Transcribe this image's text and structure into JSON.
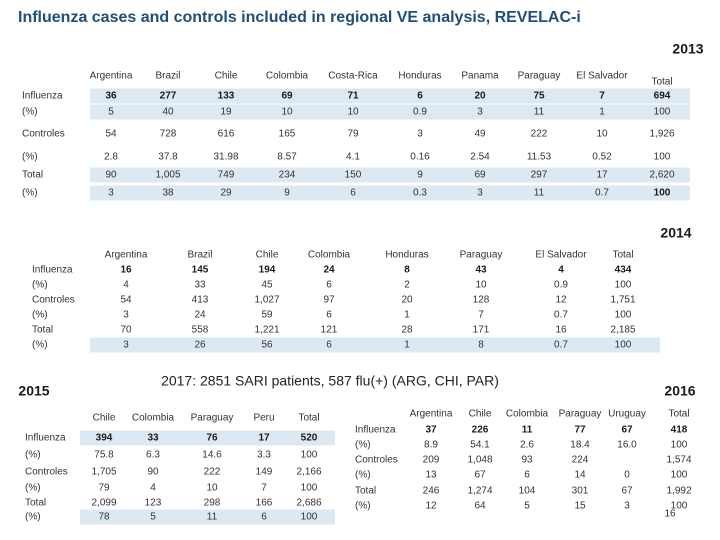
{
  "title": "Influenza cases and controls included in regional VE analysis, REVELAC-i",
  "subtitle": "2017: 2851 SARI patients, 587 flu(+) (ARG, CHI, PAR)",
  "page_number": "16",
  "tables": [
    {
      "year": "2013",
      "columns": [
        "Argentina",
        "Brazil",
        "Chile",
        "Colombia",
        "Costa-Rica",
        "Honduras",
        "Panama",
        "Paraguay",
        "El Salvador",
        "Total"
      ],
      "rows": [
        {
          "label": "Influenza",
          "cells": [
            "36",
            "277",
            "133",
            "69",
            "71",
            "6",
            "20",
            "75",
            "7",
            "694"
          ]
        },
        {
          "label": "(%)",
          "cells": [
            "5",
            "40",
            "19",
            "10",
            "10",
            "0.9",
            "3",
            "11",
            "1",
            "100"
          ]
        },
        {
          "label": "Controles",
          "cells": [
            "54",
            "728",
            "616",
            "165",
            "79",
            "3",
            "49",
            "222",
            "10",
            "1,926"
          ]
        },
        {
          "label": "(%)",
          "cells": [
            "2.8",
            "37.8",
            "31.98",
            "8.57",
            "4.1",
            "0.16",
            "2.54",
            "11.53",
            "0.52",
            "100"
          ]
        },
        {
          "label": "Total",
          "cells": [
            "90",
            "1,005",
            "749",
            "234",
            "150",
            "9",
            "69",
            "297",
            "17",
            "2,620"
          ]
        },
        {
          "label": "(%)",
          "cells": [
            "3",
            "38",
            "29",
            "9",
            "6",
            "0.3",
            "3",
            "11",
            "0.7",
            "100"
          ]
        }
      ]
    },
    {
      "year": "2014",
      "columns": [
        "Argentina",
        "Brazil",
        "Chile",
        "Colombia",
        "Honduras",
        "Paraguay",
        "El Salvador",
        "Total"
      ],
      "rows": [
        {
          "label": "Influenza",
          "cells": [
            "16",
            "145",
            "194",
            "24",
            "8",
            "43",
            "4",
            "434"
          ]
        },
        {
          "label": "(%)",
          "cells": [
            "4",
            "33",
            "45",
            "6",
            "2",
            "10",
            "0.9",
            "100"
          ]
        },
        {
          "label": "Controles",
          "cells": [
            "54",
            "413",
            "1,027",
            "97",
            "20",
            "128",
            "12",
            "1,751"
          ]
        },
        {
          "label": "(%)",
          "cells": [
            "3",
            "24",
            "59",
            "6",
            "1",
            "7",
            "0.7",
            "100"
          ]
        },
        {
          "label": "Total",
          "cells": [
            "70",
            "558",
            "1,221",
            "121",
            "28",
            "171",
            "16",
            "2,185"
          ]
        },
        {
          "label": "(%)",
          "cells": [
            "3",
            "26",
            "56",
            "6",
            "1",
            "8",
            "0.7",
            "100"
          ]
        }
      ]
    },
    {
      "year": "2015",
      "columns": [
        "Chile",
        "Colombia",
        "Paraguay",
        "Peru",
        "Total"
      ],
      "rows": [
        {
          "label": "Influenza",
          "cells": [
            "394",
            "33",
            "76",
            "17",
            "520"
          ]
        },
        {
          "label": "(%)",
          "cells": [
            "75.8",
            "6.3",
            "14.6",
            "3.3",
            "100"
          ]
        },
        {
          "label": "Controles",
          "cells": [
            "1,705",
            "90",
            "222",
            "149",
            "2,166"
          ]
        },
        {
          "label": "(%)",
          "cells": [
            "79",
            "4",
            "10",
            "7",
            "100"
          ]
        },
        {
          "label": "Total",
          "cells": [
            "2,099",
            "123",
            "298",
            "166",
            "2,686"
          ]
        },
        {
          "label": "(%)",
          "cells": [
            "78",
            "5",
            "11",
            "6",
            "100"
          ]
        }
      ]
    },
    {
      "year": "2016",
      "columns": [
        "Argentina",
        "Chile",
        "Colombia",
        "Paraguay",
        "Uruguay",
        "Total"
      ],
      "rows": [
        {
          "label": "Influenza",
          "cells": [
            "37",
            "226",
            "11",
            "77",
            "67",
            "418"
          ]
        },
        {
          "label": "(%)",
          "cells": [
            "8.9",
            "54.1",
            "2.6",
            "18.4",
            "16.0",
            "100"
          ]
        },
        {
          "label": "Controles",
          "cells": [
            "209",
            "1,048",
            "93",
            "224",
            null,
            "1,574"
          ]
        },
        {
          "label": "(%)",
          "cells": [
            "13",
            "67",
            "6",
            "14",
            "0",
            "100"
          ]
        },
        {
          "label": "Total",
          "cells": [
            "246",
            "1,274",
            "104",
            "301",
            "67",
            "1,992"
          ]
        },
        {
          "label": "(%)",
          "cells": [
            "12",
            "64",
            "5",
            "15",
            "3",
            "100"
          ]
        }
      ]
    }
  ]
}
